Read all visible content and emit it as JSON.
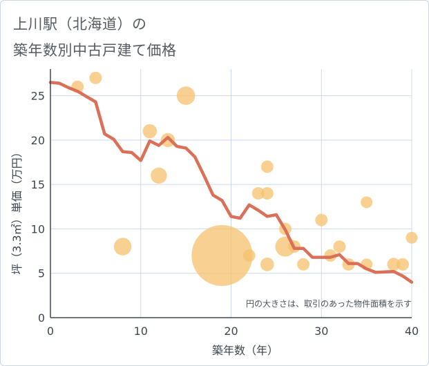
{
  "title": {
    "line1": "上川駅（北海道）の",
    "line2": "築年数別中古戸建て価格"
  },
  "note": "円の大きさは、取引のあった物件面積を示す",
  "colors": {
    "line": "#d97057",
    "bubble": "#f5c16e",
    "grid": "#c9d9ea",
    "axis": "#3d4650"
  },
  "chart_data": {
    "type": "scatter",
    "xlabel": "築年数（年）",
    "ylabel": "坪（3.3㎡）単価（万円）",
    "xlim": [
      0,
      40
    ],
    "ylim": [
      0,
      28
    ],
    "x_ticks": [
      0,
      10,
      20,
      30,
      40
    ],
    "y_ticks": [
      0,
      5,
      10,
      15,
      20,
      25
    ],
    "grid": true,
    "series": [
      {
        "type": "line",
        "x": [
          0,
          1,
          2,
          3,
          4,
          5,
          6,
          7,
          8,
          9,
          10,
          11,
          12,
          13,
          14,
          15,
          16,
          17,
          18,
          19,
          20,
          21,
          22,
          23,
          24,
          25,
          26,
          27,
          28,
          29,
          30,
          31,
          32,
          33,
          34,
          35,
          36,
          37,
          38,
          39,
          40
        ],
        "y": [
          26.5,
          26.4,
          25.9,
          25.5,
          24.9,
          24.3,
          20.7,
          20.1,
          18.7,
          18.6,
          17.7,
          19.9,
          19.4,
          20.3,
          19.3,
          19.1,
          18.1,
          16.0,
          13.8,
          13.2,
          11.4,
          11.2,
          12.7,
          12.1,
          11.4,
          11.6,
          9.9,
          7.8,
          7.8,
          6.8,
          6.8,
          6.8,
          7.1,
          6.1,
          6.1,
          5.5,
          5.1,
          5.15,
          5.2,
          4.7,
          4.0
        ]
      },
      {
        "type": "bubble",
        "points": [
          {
            "x": 3,
            "y": 26,
            "size": 1
          },
          {
            "x": 5,
            "y": 27,
            "size": 1
          },
          {
            "x": 8,
            "y": 8,
            "size": 2
          },
          {
            "x": 11,
            "y": 21,
            "size": 1.3
          },
          {
            "x": 12,
            "y": 16,
            "size": 1.7
          },
          {
            "x": 13,
            "y": 20,
            "size": 1.3
          },
          {
            "x": 15,
            "y": 25,
            "size": 2.2
          },
          {
            "x": 19,
            "y": 7,
            "size": 24
          },
          {
            "x": 22,
            "y": 7,
            "size": 1
          },
          {
            "x": 23,
            "y": 14,
            "size": 1
          },
          {
            "x": 24,
            "y": 17,
            "size": 1
          },
          {
            "x": 24,
            "y": 14,
            "size": 1
          },
          {
            "x": 24,
            "y": 6,
            "size": 1.2
          },
          {
            "x": 26,
            "y": 10,
            "size": 1
          },
          {
            "x": 26,
            "y": 8,
            "size": 2.6
          },
          {
            "x": 27,
            "y": 8,
            "size": 1
          },
          {
            "x": 28,
            "y": 6,
            "size": 1
          },
          {
            "x": 30,
            "y": 11,
            "size": 1
          },
          {
            "x": 31,
            "y": 7,
            "size": 1
          },
          {
            "x": 32,
            "y": 8,
            "size": 1
          },
          {
            "x": 33,
            "y": 6,
            "size": 1
          },
          {
            "x": 35,
            "y": 13,
            "size": 0.9
          },
          {
            "x": 35,
            "y": 6,
            "size": 0.9
          },
          {
            "x": 38,
            "y": 6,
            "size": 1.1
          },
          {
            "x": 39,
            "y": 6,
            "size": 1
          },
          {
            "x": 40,
            "y": 9,
            "size": 0.9
          }
        ]
      }
    ]
  }
}
